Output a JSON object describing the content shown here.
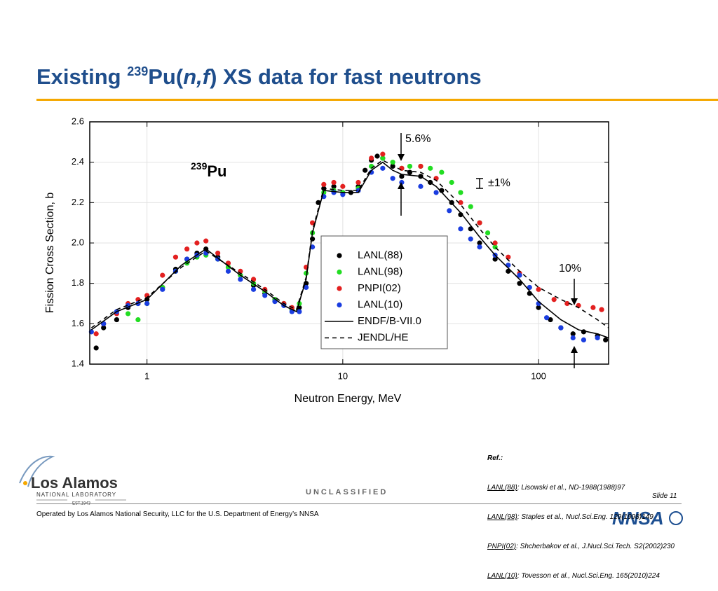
{
  "header": {
    "title": {
      "pre": "Existing ",
      "sup": "239",
      "mid": "Pu(",
      "ital": "n,f",
      "post": ") XS data for fast neutrons"
    }
  },
  "chart_data": {
    "type": "scatter",
    "xlabel": "Neutron Energy, MeV",
    "ylabel": "Fission Cross Section, b",
    "xscale": "log",
    "xlim": [
      0.51,
      228
    ],
    "xticks": [
      1,
      10,
      100
    ],
    "ylim": [
      1.4,
      2.6
    ],
    "yticks": [
      1.4,
      1.6,
      1.8,
      {
        "value": 2,
        "label": "2.0"
      },
      2.2,
      2.4,
      2.6
    ],
    "grid": true,
    "legend": "center",
    "label": {
      "sup": "239",
      "text": "Pu"
    },
    "annotations": [
      {
        "text": "5.6%"
      },
      {
        "text": "±1%"
      },
      {
        "text": "10%"
      }
    ],
    "series": [
      {
        "name": "LANL(88)",
        "color": "#000000",
        "mode": "markers",
        "x": [
          0.55,
          0.6,
          0.7,
          0.8,
          0.9,
          1.0,
          1.2,
          1.4,
          1.6,
          1.8,
          2.0,
          2.3,
          2.6,
          3.0,
          3.5,
          4.0,
          4.5,
          5.0,
          5.5,
          6.0,
          6.5,
          7.0,
          7.5,
          8,
          9,
          10,
          11,
          12,
          13,
          14,
          15,
          16,
          18,
          20,
          22,
          25,
          28,
          32,
          36,
          40,
          45,
          50,
          60,
          70,
          80,
          90,
          100,
          115,
          130,
          150,
          170,
          200,
          220
        ],
        "values": [
          1.48,
          1.58,
          1.62,
          1.68,
          1.7,
          1.72,
          1.78,
          1.87,
          1.92,
          1.95,
          1.97,
          1.93,
          1.88,
          1.84,
          1.79,
          1.75,
          1.72,
          1.7,
          1.67,
          1.68,
          1.8,
          2.02,
          2.2,
          2.27,
          2.28,
          2.25,
          2.25,
          2.28,
          2.36,
          2.41,
          2.43,
          2.42,
          2.38,
          2.33,
          2.35,
          2.33,
          2.3,
          2.26,
          2.2,
          2.14,
          2.07,
          2.0,
          1.92,
          1.86,
          1.8,
          1.75,
          1.68,
          1.62,
          1.58,
          1.55,
          1.56,
          1.54,
          1.52
        ]
      },
      {
        "name": "LANL(98)",
        "color": "#22dd22",
        "mode": "markers",
        "x": [
          0.8,
          0.9,
          1.0,
          1.2,
          1.4,
          1.6,
          1.8,
          2.0,
          2.3,
          2.6,
          3.0,
          3.5,
          4.0,
          4.5,
          5.0,
          5.5,
          6.0,
          6.5,
          7.0,
          8,
          9,
          10,
          12,
          14,
          16,
          18,
          20,
          22,
          25,
          28,
          32,
          36,
          40,
          45,
          50,
          55,
          60
        ],
        "values": [
          1.65,
          1.62,
          1.7,
          1.78,
          1.86,
          1.9,
          1.93,
          1.94,
          1.92,
          1.88,
          1.84,
          1.8,
          1.76,
          1.72,
          1.7,
          1.67,
          1.7,
          1.85,
          2.05,
          2.25,
          2.26,
          2.25,
          2.27,
          2.38,
          2.42,
          2.4,
          2.37,
          2.38,
          2.38,
          2.37,
          2.35,
          2.3,
          2.25,
          2.18,
          2.1,
          2.05,
          1.98
        ]
      },
      {
        "name": "PNPI(02)",
        "color": "#e32020",
        "mode": "markers",
        "x": [
          0.55,
          0.6,
          0.7,
          0.8,
          0.9,
          1.0,
          1.2,
          1.4,
          1.6,
          1.8,
          2.0,
          2.3,
          2.6,
          3.0,
          3.5,
          4.0,
          5.0,
          5.5,
          6.5,
          7.0,
          8,
          9,
          10,
          12,
          14,
          16,
          20,
          25,
          30,
          40,
          50,
          60,
          70,
          80,
          100,
          120,
          140,
          160,
          190,
          210
        ],
        "values": [
          1.55,
          1.6,
          1.65,
          1.7,
          1.72,
          1.74,
          1.84,
          1.93,
          1.97,
          2.0,
          2.01,
          1.95,
          1.9,
          1.86,
          1.82,
          1.77,
          1.7,
          1.68,
          1.88,
          2.1,
          2.29,
          2.3,
          2.28,
          2.3,
          2.42,
          2.44,
          2.37,
          2.38,
          2.32,
          2.2,
          2.1,
          2.0,
          1.93,
          1.85,
          1.77,
          1.72,
          1.7,
          1.69,
          1.68,
          1.67
        ]
      },
      {
        "name": "LANL(10)",
        "color": "#1a3de0",
        "mode": "markers",
        "x": [
          0.52,
          0.6,
          0.7,
          0.8,
          0.9,
          1.0,
          1.2,
          1.4,
          1.6,
          1.8,
          2.0,
          2.3,
          2.6,
          3.0,
          3.5,
          4.0,
          4.5,
          5.0,
          5.5,
          6.0,
          6.5,
          7.0,
          8,
          9,
          10,
          12,
          14,
          16,
          18,
          20,
          25,
          30,
          35,
          40,
          45,
          50,
          60,
          70,
          80,
          90,
          100,
          110,
          130,
          150,
          170,
          200
        ],
        "values": [
          1.56,
          1.6,
          1.66,
          1.69,
          1.7,
          1.7,
          1.77,
          1.86,
          1.92,
          1.94,
          1.95,
          1.92,
          1.86,
          1.82,
          1.77,
          1.74,
          1.71,
          1.69,
          1.66,
          1.66,
          1.78,
          1.98,
          2.23,
          2.25,
          2.24,
          2.26,
          2.35,
          2.37,
          2.32,
          2.3,
          2.28,
          2.25,
          2.16,
          2.07,
          2.02,
          1.98,
          1.94,
          1.89,
          1.84,
          1.78,
          1.7,
          1.63,
          1.58,
          1.53,
          1.52,
          1.53
        ]
      },
      {
        "name": "ENDF/B-VII.0",
        "color": "#000000",
        "mode": "line",
        "dash": "solid",
        "x": [
          0.52,
          0.7,
          1.0,
          1.5,
          2.0,
          3.0,
          4.0,
          5.0,
          5.8,
          6.5,
          7.0,
          8,
          10,
          12,
          14,
          16,
          18,
          20,
          25,
          30,
          40,
          50,
          60,
          80,
          100,
          130,
          160,
          200,
          228
        ],
        "values": [
          1.57,
          1.66,
          1.72,
          1.89,
          1.97,
          1.84,
          1.76,
          1.69,
          1.66,
          1.82,
          2.05,
          2.26,
          2.25,
          2.25,
          2.36,
          2.4,
          2.36,
          2.34,
          2.33,
          2.28,
          2.15,
          2.03,
          1.94,
          1.82,
          1.71,
          1.62,
          1.57,
          1.55,
          1.53
        ]
      },
      {
        "name": "JENDL/HE",
        "color": "#000000",
        "mode": "line",
        "dash": "dashed",
        "x": [
          0.52,
          0.7,
          1.0,
          1.5,
          2.0,
          3.0,
          4.0,
          5.0,
          5.8,
          6.5,
          7.0,
          8,
          10,
          12,
          14,
          16,
          20,
          25,
          30,
          40,
          50,
          60,
          80,
          100,
          130,
          160,
          200,
          228
        ],
        "values": [
          1.58,
          1.67,
          1.73,
          1.88,
          1.96,
          1.85,
          1.77,
          1.7,
          1.67,
          1.83,
          2.06,
          2.27,
          2.26,
          2.26,
          2.37,
          2.41,
          2.36,
          2.35,
          2.31,
          2.19,
          2.07,
          1.98,
          1.86,
          1.78,
          1.72,
          1.68,
          1.62,
          1.58
        ]
      }
    ]
  },
  "refs": {
    "title": "Ref.:",
    "items": [
      {
        "label": "LANL(88)",
        "text": ": Lisowski et al., ND-1988(1988)97"
      },
      {
        "label": "LANL(98)",
        "text": ": Staples et al., Nucl.Sci.Eng. 129(1998)149"
      },
      {
        "label": "PNPI(02)",
        "text": ": Shcherbakov et al., J.Nucl.Sci.Tech. S2(2002)230"
      },
      {
        "label": "LANL(10)",
        "text": ": Tovesson et al., Nucl.Sci.Eng. 165(2010)224"
      }
    ]
  },
  "footer": {
    "classification": "UNCLASSIFIED",
    "slide": "Slide 11",
    "operated": "Operated by Los Alamos National Security, LLC for the U.S. Department of Energy’s NNSA",
    "logo": {
      "name": "Los Alamos",
      "lab": "NATIONAL LABORATORY",
      "est": "EST.1943"
    },
    "nnsa": "NNSA"
  }
}
